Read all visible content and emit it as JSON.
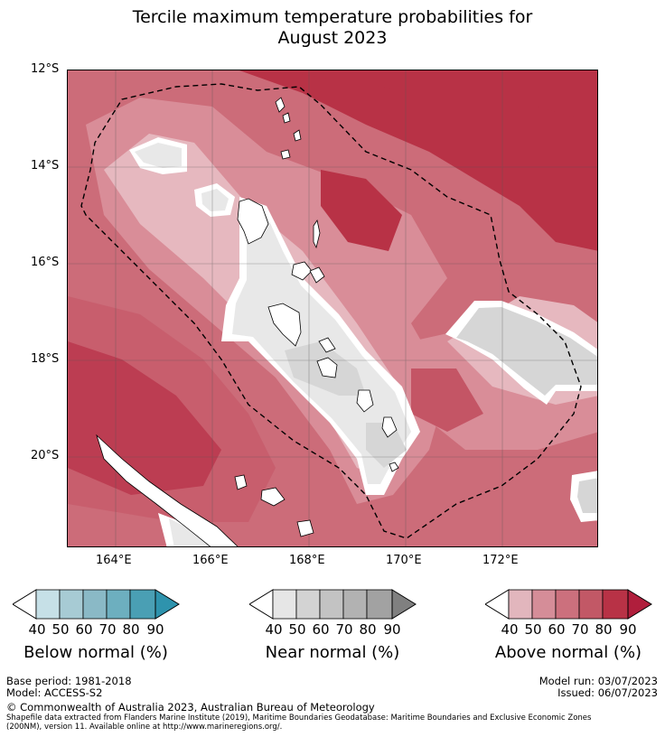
{
  "title_line1": "Tercile maximum temperature probabilities for",
  "title_line2": "August 2023",
  "map": {
    "lat_labels": [
      "12°S",
      "14°S",
      "16°S",
      "18°S",
      "20°S"
    ],
    "lon_labels": [
      "164°E",
      "166°E",
      "168°E",
      "170°E",
      "172°E"
    ],
    "palette_above": [
      "#e6b8bf",
      "#d98d98",
      "#cc6c79",
      "#c45565",
      "#b83246",
      "#ae1b35"
    ],
    "palette_near": [
      "#e8e8e8",
      "#d6d6d6"
    ],
    "land_color": "#ffffff",
    "eez_line": "dashed"
  },
  "legends": [
    {
      "caption": "Below normal (%)",
      "ticks": [
        "40",
        "50",
        "60",
        "70",
        "80",
        "90"
      ],
      "colors": [
        "#ffffff",
        "#c6e0e7",
        "#a7cbd4",
        "#8ab9c6",
        "#6dafbf",
        "#4a9fb4",
        "#2e93ad"
      ]
    },
    {
      "caption": "Near normal (%)",
      "ticks": [
        "40",
        "50",
        "60",
        "70",
        "80",
        "90"
      ],
      "colors": [
        "#ffffff",
        "#e6e6e6",
        "#d3d3d3",
        "#c3c3c3",
        "#b2b2b2",
        "#a2a2a2",
        "#808080"
      ]
    },
    {
      "caption": "Above normal (%)",
      "ticks": [
        "40",
        "50",
        "60",
        "70",
        "80",
        "90"
      ],
      "colors": [
        "#ffffff",
        "#e2b6bd",
        "#d58d98",
        "#cc707d",
        "#c25866",
        "#b83246",
        "#b01e3c"
      ]
    }
  ],
  "footer": {
    "base_period": "Base period: 1981-2018",
    "model": "Model: ACCESS-S2",
    "model_run": "Model run: 03/07/2023",
    "issued": "Issued: 06/07/2023",
    "copyright": "© Commonwealth of Australia 2023, Australian Bureau of Meteorology",
    "shapefile_line1": "Shapefile data extracted from Flanders Marine Institute (2019), Maritime Boundaries Geodatabase: Maritime Boundaries and Exclusive Economic Zones",
    "shapefile_line2": "(200NM), version 11. Available online at http://www.marineregions.org/."
  }
}
